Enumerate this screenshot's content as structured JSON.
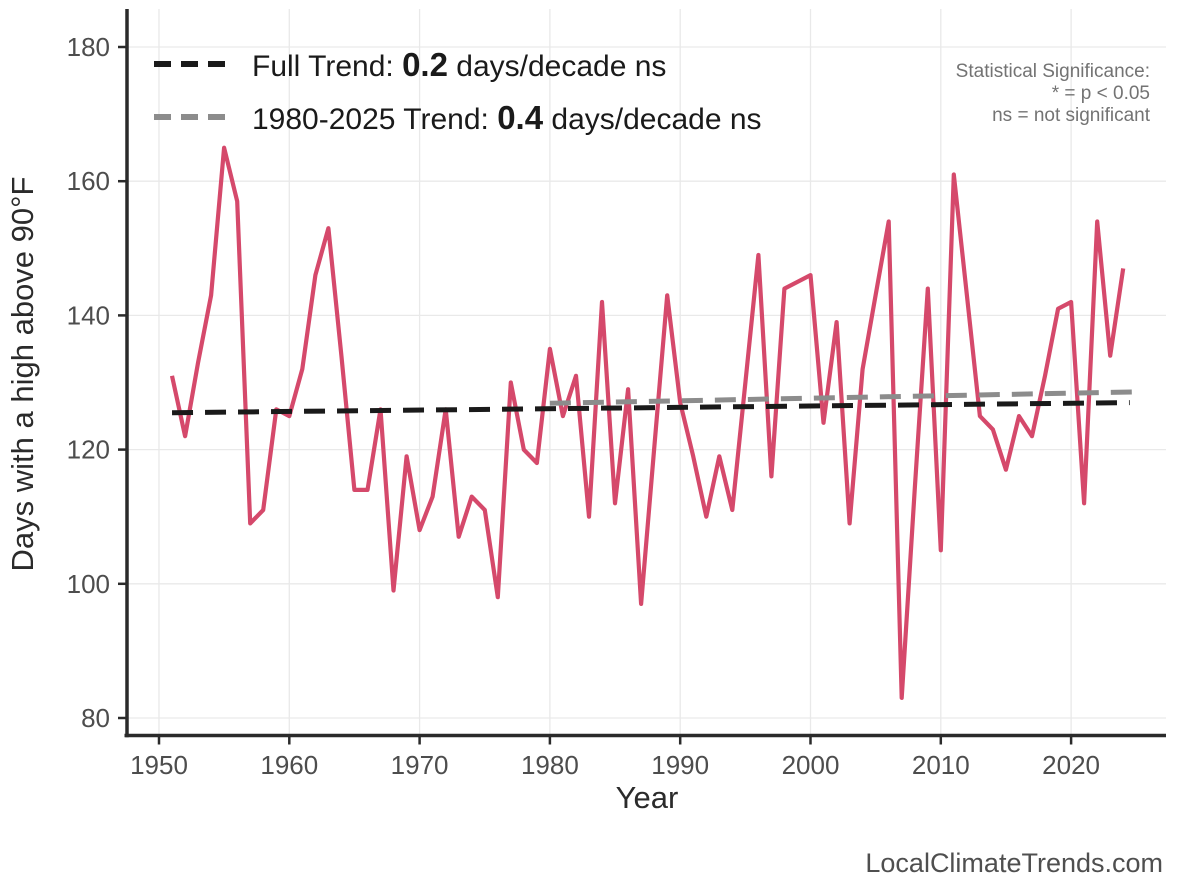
{
  "branding": "LocalClimateTrends.com",
  "legend": {
    "entries": [
      {
        "prefix": "Full Trend: ",
        "value": "0.2",
        "suffix": " days/decade ns",
        "color": "#1a1a1a"
      },
      {
        "prefix": "1980-2025 Trend: ",
        "value": "0.4",
        "suffix": " days/decade ns",
        "color": "#8c8c8c"
      }
    ]
  },
  "annotations": {
    "significance_line1": "Statistical Significance:",
    "significance_line2": "* = p < 0.05",
    "significance_line3": "ns = not significant"
  },
  "colors": {
    "series_line": "#d5496b",
    "full_trend": "#1a1a1a",
    "recent_trend": "#8c8c8c",
    "gridline": "#e9e9e9",
    "axis_line": "#2b2b2b",
    "tick_text": "#4d4d4d"
  },
  "chart_data": {
    "type": "line",
    "title": "",
    "xlabel": "Year",
    "ylabel": "Days with a high above 90°F",
    "x_ticks": [
      1950,
      1960,
      1970,
      1980,
      1990,
      2000,
      2010,
      2020
    ],
    "y_ticks": [
      80,
      100,
      120,
      140,
      160,
      180
    ],
    "xlim": [
      1947.5,
      2027
    ],
    "ylim": [
      76,
      185
    ],
    "grid": true,
    "legend_position": "top-left",
    "series": [
      {
        "name": "annual days above 90F",
        "color": "#d5496b",
        "x": [
          1951,
          1952,
          1953,
          1954,
          1955,
          1956,
          1957,
          1958,
          1959,
          1960,
          1961,
          1962,
          1963,
          1964,
          1965,
          1966,
          1967,
          1968,
          1969,
          1970,
          1971,
          1972,
          1973,
          1974,
          1975,
          1976,
          1977,
          1978,
          1979,
          1980,
          1981,
          1982,
          1983,
          1984,
          1985,
          1986,
          1987,
          1988,
          1989,
          1990,
          1991,
          1992,
          1993,
          1994,
          1995,
          1996,
          1997,
          1998,
          1999,
          2000,
          2001,
          2002,
          2003,
          2004,
          2005,
          2006,
          2007,
          2008,
          2009,
          2010,
          2011,
          2012,
          2013,
          2014,
          2015,
          2016,
          2017,
          2018,
          2019,
          2020,
          2021,
          2022,
          2023,
          2024
        ],
        "values": [
          131,
          122,
          133,
          143,
          165,
          157,
          109,
          111,
          126,
          125,
          132,
          146,
          153,
          134,
          114,
          114,
          126,
          99,
          119,
          108,
          113,
          126,
          107,
          113,
          111,
          98,
          130,
          120,
          118,
          135,
          125,
          131,
          110,
          142,
          112,
          129,
          97,
          120,
          143,
          127,
          119,
          110,
          119,
          111,
          130,
          149,
          116,
          144,
          145,
          146,
          124,
          139,
          109,
          132,
          143,
          154,
          83,
          114,
          144,
          105,
          161,
          143,
          125,
          123,
          117,
          125,
          122,
          131,
          141,
          142,
          112,
          154,
          134,
          147
        ]
      }
    ],
    "trend_lines": [
      {
        "name": "full-trend",
        "label": "Full Trend: 0.2 days/decade ns",
        "color": "#1a1a1a",
        "x1": 1951,
        "y1": 125.5,
        "x2": 2024.5,
        "y2": 127.0
      },
      {
        "name": "trend-1980-2025",
        "label": "1980-2025 Trend: 0.4 days/decade ns",
        "color": "#8c8c8c",
        "x1": 1980,
        "y1": 126.9,
        "x2": 2025,
        "y2": 128.6
      }
    ]
  }
}
